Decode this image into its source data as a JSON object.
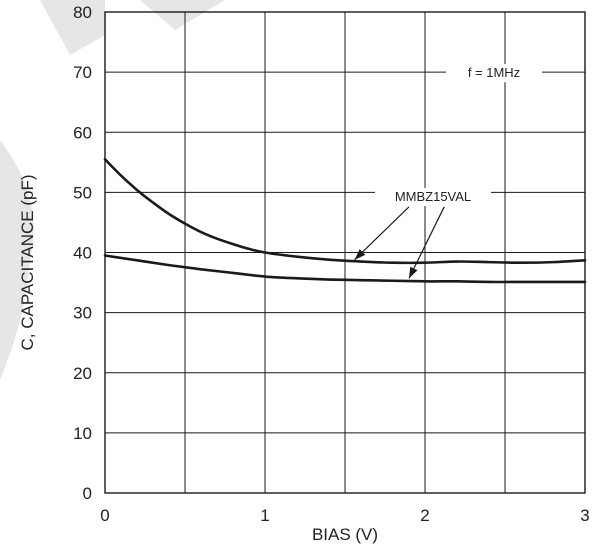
{
  "chart_data": {
    "type": "line",
    "title": "",
    "xlabel": "BIAS (V)",
    "ylabel": "C, CAPACITANCE (pF)",
    "xlim": [
      0,
      3
    ],
    "ylim": [
      0,
      80
    ],
    "x_ticks": [
      "0",
      "1",
      "2",
      "3"
    ],
    "y_ticks": [
      "0",
      "10",
      "20",
      "30",
      "40",
      "50",
      "60",
      "70",
      "80"
    ],
    "grid": true,
    "x_grid_step": 0.5,
    "y_grid_step": 10,
    "annotations": {
      "frequency": "f = 1MHz",
      "device": "MMBZ15VAL"
    },
    "series": [
      {
        "x": [
          0,
          0.1,
          0.2,
          0.3,
          0.4,
          0.5,
          0.6,
          0.7,
          0.8,
          0.9,
          1.0,
          1.2,
          1.4,
          1.6,
          1.8,
          2.0,
          2.2,
          2.4,
          2.6,
          2.8,
          3.0
        ],
        "values": [
          55.5,
          52.8,
          50.4,
          48.3,
          46.4,
          44.8,
          43.4,
          42.3,
          41.4,
          40.6,
          40.0,
          39.3,
          38.8,
          38.5,
          38.3,
          38.3,
          38.5,
          38.4,
          38.3,
          38.4,
          38.7
        ]
      },
      {
        "x": [
          0,
          0.2,
          0.4,
          0.6,
          0.8,
          1.0,
          1.2,
          1.4,
          1.6,
          1.8,
          2.0,
          2.2,
          2.4,
          2.6,
          2.8,
          3.0
        ],
        "values": [
          39.5,
          38.7,
          37.9,
          37.2,
          36.6,
          36.0,
          35.7,
          35.5,
          35.4,
          35.3,
          35.2,
          35.2,
          35.1,
          35.1,
          35.1,
          35.1
        ]
      }
    ]
  }
}
